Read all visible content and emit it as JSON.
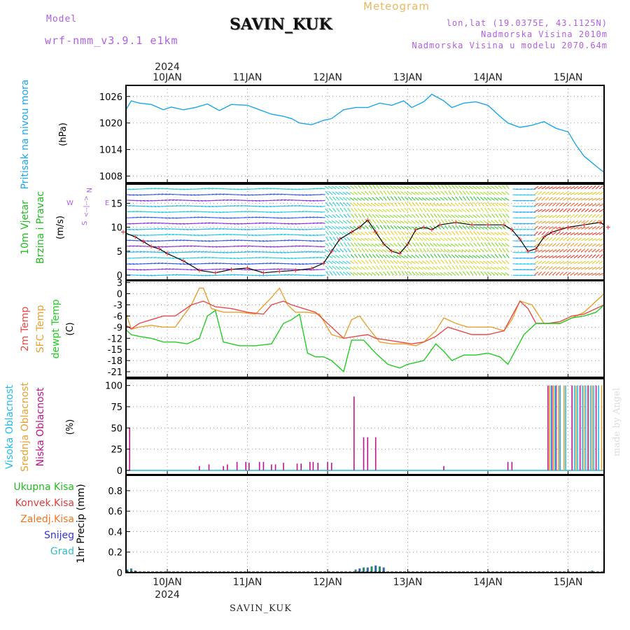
{
  "header": {
    "model_label": "Model",
    "model_name": "wrf-nmm_v3.9.1  e1km",
    "site_name": "SAVIN_KUK",
    "meteogram_label": "Meteogram",
    "lonlat": "lon,lat (19.0375E, 43.1125N)",
    "altitude": "Nadmorska Visina 2010m",
    "model_altitude": "Nadmorska Visina u modelu 2070.64m",
    "footer_site": "SAVIN_KUK",
    "watermark": "made by Angel"
  },
  "colors": {
    "pressure": "#1aa7ea",
    "temp2m": "#e84a4a",
    "sfc_temp": "#e8a030",
    "dewpt": "#22cc22",
    "high_cloud": "#22bbee",
    "mid_cloud": "#e8a030",
    "low_cloud": "#c0148c",
    "total_precip": "#22bb22",
    "conv_precip": "#e03a3a",
    "frz_precip": "#ee7722",
    "snow": "#3333dd",
    "graupel": "#33bbcc",
    "model_purple": "#b060e0"
  },
  "chart_data": [
    {
      "type": "line",
      "name": "pressure",
      "ylabel_lines": [
        "Pritisak na nivou mora",
        "(hPa)"
      ],
      "yticks": [
        1008,
        1014,
        1020,
        1026
      ],
      "ylim": [
        1006.5,
        1028.5
      ],
      "x_unit": "days since 10JAN 00UTC",
      "xlim": [
        -0.55,
        5.5
      ],
      "grid": true,
      "series": [
        {
          "name": "Pritisak",
          "x": [
            -0.55,
            -0.45,
            -0.35,
            -0.2,
            -0.05,
            0.05,
            0.2,
            0.35,
            0.5,
            0.65,
            0.8,
            1.0,
            1.15,
            1.3,
            1.45,
            1.55,
            1.65,
            1.8,
            1.95,
            2.05,
            2.2,
            2.35,
            2.5,
            2.65,
            2.8,
            2.95,
            3.05,
            3.2,
            3.3,
            3.45,
            3.55,
            3.7,
            3.85,
            4.0,
            4.15,
            4.25,
            4.4,
            4.55,
            4.7,
            4.85,
            5.0,
            5.1,
            5.2,
            5.3,
            5.4,
            5.5
          ],
          "values": [
            1022.0,
            1025.0,
            1024.5,
            1024.2,
            1023.0,
            1023.6,
            1023.0,
            1023.5,
            1024.3,
            1022.8,
            1024.2,
            1024.0,
            1023.0,
            1022.0,
            1021.5,
            1021.0,
            1020.0,
            1019.6,
            1020.6,
            1021.0,
            1023.0,
            1023.5,
            1023.5,
            1024.5,
            1024.0,
            1025.0,
            1023.5,
            1024.8,
            1026.5,
            1025.0,
            1023.5,
            1024.5,
            1024.8,
            1024.0,
            1021.5,
            1020.0,
            1019.0,
            1019.5,
            1020.3,
            1018.8,
            1018.0,
            1015.0,
            1012.5,
            1011.0,
            1009.5,
            1008.2
          ]
        }
      ]
    },
    {
      "type": "scatter",
      "name": "wind",
      "ylabel_lines": [
        "10m Vjetar",
        "Brzina i Pravac",
        "(m/s)"
      ],
      "direction_key": [
        "N",
        "<--|-->",
        "W",
        "E",
        "S"
      ],
      "yticks": [
        0,
        5,
        10,
        15
      ],
      "ylim": [
        -1,
        19
      ],
      "grid": true,
      "series": [
        {
          "name": "Brzina",
          "x": [
            -0.55,
            -0.4,
            -0.3,
            -0.2,
            -0.1,
            0.0,
            0.2,
            0.4,
            0.6,
            0.8,
            1.0,
            1.2,
            1.4,
            1.6,
            1.8,
            1.95,
            2.05,
            2.15,
            2.3,
            2.4,
            2.5,
            2.6,
            2.7,
            2.8,
            2.9,
            3.0,
            3.1,
            3.2,
            3.3,
            3.4,
            3.6,
            3.8,
            4.0,
            4.2,
            4.3,
            4.4,
            4.5,
            4.6,
            4.7,
            4.8,
            4.9,
            5.0,
            5.2,
            5.4,
            5.5
          ],
          "values": [
            9,
            8,
            7,
            6,
            5.5,
            4.5,
            3,
            1,
            0.5,
            1.2,
            1.5,
            0.5,
            0.8,
            1.0,
            1.4,
            2.5,
            5.0,
            7.5,
            9.0,
            10.0,
            11.5,
            9.0,
            6.5,
            5.0,
            4.5,
            6.5,
            9.5,
            10.0,
            9.5,
            10.5,
            11.0,
            10.5,
            10.5,
            10.5,
            9.5,
            7.5,
            5.0,
            5.5,
            8.0,
            9.0,
            9.5,
            10.0,
            10.5,
            11.0,
            10.0
          ]
        }
      ]
    },
    {
      "type": "line",
      "name": "temperature",
      "ylabel_lines": [
        "2m Temp",
        "SFC Temp",
        "dewpt Temp",
        "(C)"
      ],
      "yticks": [
        3,
        0,
        -3,
        -6,
        -9,
        -12,
        -15,
        -18,
        -21
      ],
      "ylim": [
        -22.5,
        3.5
      ],
      "grid": true,
      "series": [
        {
          "name": "2m Temp",
          "x": [
            -0.55,
            -0.45,
            -0.35,
            -0.2,
            -0.05,
            0.1,
            0.3,
            0.45,
            0.6,
            0.8,
            1.0,
            1.2,
            1.3,
            1.45,
            1.55,
            1.7,
            1.85,
            2.0,
            2.1,
            2.2,
            2.35,
            2.5,
            2.6,
            2.75,
            2.9,
            3.05,
            3.2,
            3.35,
            3.5,
            3.65,
            3.8,
            4.0,
            4.2,
            4.3,
            4.4,
            4.5,
            4.6,
            4.75,
            4.9,
            5.05,
            5.2,
            5.35,
            5.45,
            5.5
          ],
          "values": [
            -8,
            -9.5,
            -8,
            -7,
            -6,
            -6,
            -3,
            -2,
            -3.5,
            -4,
            -5,
            -5.5,
            -3,
            -2,
            -3,
            -4,
            -5,
            -8,
            -10,
            -12,
            -11.5,
            -11,
            -12,
            -12.5,
            -13,
            -13.5,
            -13,
            -11.5,
            -9,
            -10,
            -11,
            -11,
            -10,
            -6,
            -2,
            -4,
            -8,
            -8,
            -7.5,
            -6,
            -5.5,
            -4,
            -3,
            -3.5
          ]
        },
        {
          "name": "SFC Temp",
          "x": [
            -0.55,
            -0.45,
            -0.35,
            -0.2,
            -0.05,
            0.1,
            0.3,
            0.4,
            0.45,
            0.55,
            0.7,
            0.9,
            1.1,
            1.3,
            1.4,
            1.5,
            1.6,
            1.75,
            1.9,
            2.05,
            2.2,
            2.3,
            2.4,
            2.5,
            2.65,
            2.8,
            2.95,
            3.1,
            3.2,
            3.35,
            3.45,
            3.6,
            3.75,
            3.9,
            4.05,
            4.2,
            4.3,
            4.4,
            4.55,
            4.7,
            4.9,
            5.05,
            5.2,
            5.35,
            5.45,
            5.5
          ],
          "values": [
            -3,
            -9.5,
            -9,
            -8.5,
            -9,
            -9,
            -3,
            1.5,
            1.5,
            -4,
            -5,
            -5,
            -5.5,
            -1,
            1.5,
            -3,
            -5,
            -5,
            -5.5,
            -11,
            -12,
            -7,
            -6,
            -9,
            -13,
            -13.5,
            -13.5,
            -14,
            -13,
            -10,
            -6.5,
            -8,
            -9,
            -9,
            -9,
            -10,
            -7,
            -2,
            -3,
            -8,
            -8,
            -6.5,
            -5,
            -2,
            0,
            -1
          ]
        },
        {
          "name": "dewpt Temp",
          "x": [
            -0.55,
            -0.45,
            -0.35,
            -0.2,
            -0.05,
            0.1,
            0.25,
            0.4,
            0.5,
            0.6,
            0.7,
            0.9,
            1.1,
            1.3,
            1.45,
            1.55,
            1.65,
            1.75,
            1.85,
            1.95,
            2.05,
            2.15,
            2.2,
            2.3,
            2.45,
            2.6,
            2.75,
            2.9,
            3.0,
            3.1,
            3.2,
            3.35,
            3.45,
            3.55,
            3.7,
            3.85,
            4.0,
            4.15,
            4.25,
            4.35,
            4.45,
            4.6,
            4.75,
            4.9,
            5.05,
            5.2,
            5.35,
            5.45,
            5.5
          ],
          "values": [
            -9,
            -11,
            -11.5,
            -12,
            -13,
            -13,
            -13.5,
            -12,
            -6,
            -4.5,
            -13,
            -14,
            -14,
            -13.5,
            -8,
            -7,
            -5.5,
            -16,
            -17,
            -17,
            -18,
            -20,
            -21,
            -12.5,
            -12.5,
            -16,
            -19,
            -20,
            -19,
            -18.5,
            -18,
            -13.5,
            -15.5,
            -18,
            -16.5,
            -16.5,
            -16,
            -17,
            -19,
            -15,
            -11,
            -8,
            -8,
            -8,
            -6.5,
            -6,
            -5,
            -3,
            -4.5
          ]
        }
      ]
    },
    {
      "type": "bar",
      "name": "cloud",
      "ylabel_lines": [
        "Visoka Oblacnost",
        "Srednja Oblacnost",
        "Niska Oblacnost",
        "(%)"
      ],
      "yticks": [
        0,
        25,
        50,
        75,
        100
      ],
      "ylim": [
        -5,
        108
      ],
      "grid": true,
      "series": [
        {
          "name": "Niska Oblacnost",
          "x": [
            -0.47,
            0.4,
            0.52,
            0.7,
            0.75,
            0.87,
            0.98,
            1.02,
            1.15,
            1.2,
            1.3,
            1.35,
            1.45,
            1.62,
            1.67,
            1.78,
            1.82,
            1.88,
            2.0,
            2.05,
            2.33,
            2.45,
            2.5,
            2.6,
            3.45,
            4.25,
            4.3,
            4.75,
            4.8,
            4.85,
            4.9,
            5.05,
            5.15,
            5.25,
            5.35,
            5.45
          ],
          "values": [
            50,
            5,
            7,
            5,
            7,
            10,
            10,
            9,
            10,
            10,
            7,
            7,
            9,
            8,
            8,
            10,
            10,
            9,
            10,
            9,
            87,
            39,
            39,
            39,
            5,
            10,
            10,
            100,
            100,
            100,
            100,
            100,
            100,
            100,
            100,
            100
          ]
        },
        {
          "name": "Srednja Oblacnost",
          "x": [
            4.77,
            4.82,
            4.88,
            4.95,
            5.1,
            5.2,
            5.3,
            5.42
          ],
          "values": [
            100,
            100,
            100,
            100,
            100,
            100,
            100,
            100
          ]
        },
        {
          "name": "Visoka Oblacnost",
          "x": [
            4.79,
            4.84,
            4.9,
            4.97,
            5.08,
            5.12,
            5.18,
            5.22,
            5.28,
            5.32,
            5.38,
            5.47
          ],
          "values": [
            100,
            100,
            100,
            100,
            100,
            100,
            100,
            100,
            100,
            100,
            100,
            100
          ]
        }
      ]
    },
    {
      "type": "bar",
      "name": "precip",
      "ylabel_lines": [
        "1hr Precip (mm)"
      ],
      "legend": [
        "Ukupna Kisa",
        "Konvek.Kisa",
        "Zaledj.Kisa",
        "Snijeg",
        "Grad"
      ],
      "yticks": [
        0,
        0.2,
        0.4,
        0.6,
        0.8
      ],
      "ylim": [
        0,
        0.95
      ],
      "grid": true,
      "series": [
        {
          "name": "Snijeg",
          "x": [
            -0.5,
            -0.45,
            -0.4,
            2.35,
            2.4,
            2.45,
            2.5,
            2.55,
            2.6,
            2.65,
            2.7,
            5.1,
            5.2,
            5.3,
            5.45,
            5.5
          ],
          "values": [
            0.03,
            0.04,
            0.02,
            0.03,
            0.04,
            0.05,
            0.05,
            0.06,
            0.07,
            0.06,
            0.05,
            0.01,
            0.01,
            0.02,
            0.03,
            0.12
          ]
        }
      ]
    }
  ],
  "xaxis": {
    "tick_labels": [
      "10JAN",
      "11JAN",
      "12JAN",
      "13JAN",
      "14JAN",
      "15JAN"
    ],
    "year": "2024"
  }
}
